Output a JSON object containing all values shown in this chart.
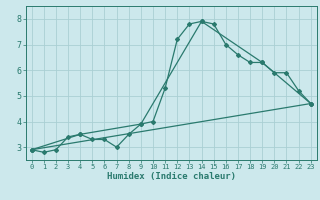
{
  "xlabel": "Humidex (Indice chaleur)",
  "background_color": "#cce8ec",
  "grid_color": "#aacfd4",
  "line_color": "#2a7a6e",
  "xlim": [
    -0.5,
    23.5
  ],
  "ylim": [
    2.5,
    8.5
  ],
  "x_ticks": [
    0,
    1,
    2,
    3,
    4,
    5,
    6,
    7,
    8,
    9,
    10,
    11,
    12,
    13,
    14,
    15,
    16,
    17,
    18,
    19,
    20,
    21,
    22,
    23
  ],
  "y_ticks": [
    3,
    4,
    5,
    6,
    7,
    8
  ],
  "curve1_x": [
    0,
    1,
    2,
    3,
    4,
    5,
    6,
    7,
    8,
    9,
    10,
    11,
    12,
    13,
    14,
    15,
    16,
    17,
    18,
    19,
    20,
    21,
    22,
    23
  ],
  "curve1_y": [
    2.9,
    2.8,
    2.9,
    3.4,
    3.5,
    3.3,
    3.3,
    3.0,
    3.5,
    3.9,
    4.0,
    5.3,
    7.2,
    7.8,
    7.9,
    7.8,
    7.0,
    6.6,
    6.3,
    6.3,
    5.9,
    5.9,
    5.2,
    4.7
  ],
  "curve2_x": [
    0,
    4,
    9,
    14,
    19,
    23
  ],
  "curve2_y": [
    2.9,
    3.5,
    3.9,
    7.9,
    6.3,
    4.7
  ],
  "curve3_x": [
    0,
    23
  ],
  "curve3_y": [
    2.9,
    4.7
  ]
}
